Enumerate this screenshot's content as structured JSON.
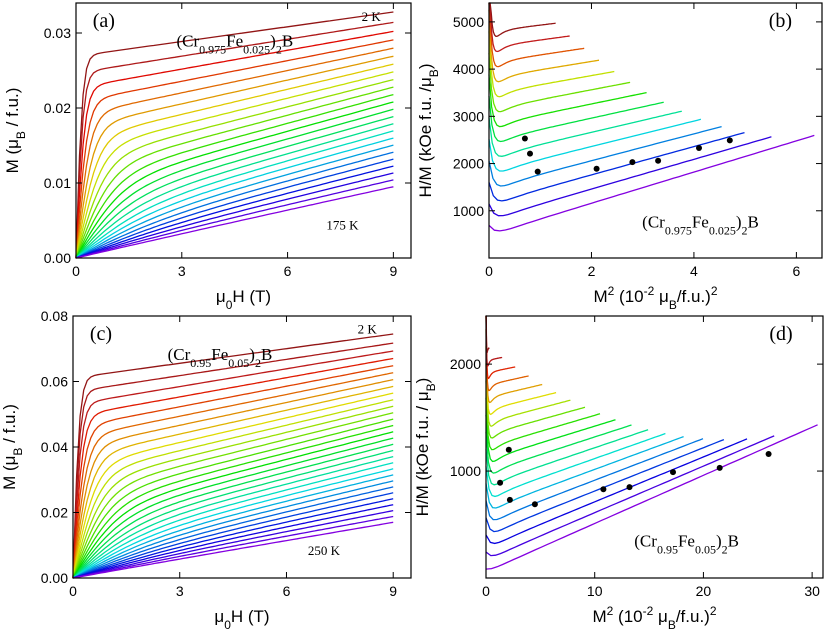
{
  "chart_data": [
    {
      "id": "a",
      "type": "line",
      "panel_label": "(a)",
      "compound": {
        "base": "(Cr",
        "sub1": "0.975",
        "mid": "Fe",
        "sub2": "0.025",
        "tail": ")",
        "sub3": "2",
        "end": "B"
      },
      "xlabel": {
        "main": "μ",
        "sub": "0",
        "rest": "H (T)"
      },
      "ylabel": {
        "main": "M (μ",
        "sub": "B",
        "rest": " / f.u.)"
      },
      "xlim": [
        0,
        9.5
      ],
      "ylim": [
        0,
        0.034
      ],
      "xticks": [
        0,
        3,
        6,
        9
      ],
      "xtick_labels": [
        "0",
        "3",
        "6",
        "9"
      ],
      "yticks": [
        0,
        0.01,
        0.02,
        0.03
      ],
      "ytick_labels": [
        "0.00",
        "0.01",
        "0.02",
        "0.03"
      ],
      "annotations": [
        {
          "text": "2 K",
          "x": 8.1,
          "y": 0.0323
        },
        {
          "text": "175 K",
          "x": 7.1,
          "y": 0.0045
        }
      ],
      "curve_model": {
        "kind": "magnetization",
        "n": 24,
        "top_end": 0.0328,
        "bottom_end": 0.0095,
        "x_max": 9
      }
    },
    {
      "id": "b",
      "type": "line",
      "panel_label": "(b)",
      "compound": {
        "base": "(Cr",
        "sub1": "0.975",
        "mid": "Fe",
        "sub2": "0.025",
        "tail": ")",
        "sub3": "2",
        "end": "B"
      },
      "xlabel": {
        "main": "M",
        "sup": "2",
        "rest": " (10",
        "sup2": "-2",
        "rest2": " μ",
        "sub": "B",
        "rest3": "/f.u.)",
        "sup3": "2"
      },
      "ylabel": {
        "main": "H/M (kOe f.u. /μ",
        "sub": "B",
        "rest": ")"
      },
      "xlim": [
        0,
        6.5
      ],
      "ylim": [
        0,
        5400
      ],
      "xticks": [
        0,
        2,
        4,
        6
      ],
      "xtick_labels": [
        "0",
        "2",
        "4",
        "6"
      ],
      "yticks": [
        1000,
        2000,
        3000,
        4000,
        5000
      ],
      "ytick_labels": [
        "1000",
        "2000",
        "3000",
        "4000",
        "5000"
      ],
      "curve_model": {
        "kind": "arrott",
        "n": 14,
        "y_low": 500,
        "y_high": 4800,
        "x_end_low": 6.35,
        "x_end_high": 1.3
      },
      "points": [
        [
          0.7,
          2530
        ],
        [
          0.8,
          2210
        ],
        [
          0.95,
          1830
        ],
        [
          2.1,
          1890
        ],
        [
          2.8,
          2030
        ],
        [
          3.3,
          2060
        ],
        [
          4.1,
          2330
        ],
        [
          4.7,
          2490
        ]
      ]
    },
    {
      "id": "c",
      "type": "line",
      "panel_label": "(c)",
      "compound": {
        "base": "(Cr",
        "sub1": "0.95",
        "mid": "Fe",
        "sub2": "0.05",
        "tail": ")",
        "sub3": "2",
        "end": "B"
      },
      "xlabel": {
        "main": "μ",
        "sub": "0",
        "rest": "H (T)"
      },
      "ylabel": {
        "main": "M (μ",
        "sub": "B",
        "rest": " / f.u.)"
      },
      "xlim": [
        0,
        9.5
      ],
      "ylim": [
        0,
        0.08
      ],
      "xticks": [
        0,
        3,
        6,
        9
      ],
      "xtick_labels": [
        "0",
        "3",
        "6",
        "9"
      ],
      "yticks": [
        0,
        0.02,
        0.04,
        0.06,
        0.08
      ],
      "ytick_labels": [
        "0.00",
        "0.02",
        "0.04",
        "0.06",
        "0.08"
      ],
      "annotations": [
        {
          "text": "2 K",
          "x": 8.0,
          "y": 0.0762
        },
        {
          "text": "250 K",
          "x": 6.6,
          "y": 0.0085
        }
      ],
      "curve_model": {
        "kind": "magnetization",
        "n": 30,
        "top_end": 0.0745,
        "bottom_end": 0.017,
        "x_max": 9
      }
    },
    {
      "id": "d",
      "type": "line",
      "panel_label": "(d)",
      "compound": {
        "base": "(Cr",
        "sub1": "0.95",
        "mid": "Fe",
        "sub2": "0.05",
        "tail": ")",
        "sub3": "2",
        "end": "B"
      },
      "xlabel": {
        "main": "M",
        "sup": "2",
        "rest": " (10",
        "sup2": "-2",
        "rest2": " μ",
        "sub": "B",
        "rest3": "/f.u.)",
        "sup3": "2"
      },
      "ylabel": {
        "main": "H/M (kOe f.u. / μ",
        "sub": "B",
        "rest": ")"
      },
      "xlim": [
        0,
        31
      ],
      "ylim": [
        0,
        2450
      ],
      "xticks": [
        0,
        10,
        20,
        30
      ],
      "xtick_labels": [
        "0",
        "10",
        "20",
        "30"
      ],
      "yticks": [
        1000,
        2000
      ],
      "ytick_labels": [
        "1000",
        "2000"
      ],
      "curve_model": {
        "kind": "arrott",
        "n": 19,
        "y_low": 60,
        "y_high": 2150,
        "x_end_low": 30.5,
        "x_end_high": 0.3
      },
      "points": [
        [
          1.3,
          890
        ],
        [
          2.1,
          1200
        ],
        [
          2.2,
          730
        ],
        [
          4.5,
          690
        ],
        [
          10.8,
          830
        ],
        [
          13.2,
          850
        ],
        [
          17.2,
          990
        ],
        [
          21.5,
          1030
        ],
        [
          26.0,
          1160
        ]
      ]
    }
  ]
}
